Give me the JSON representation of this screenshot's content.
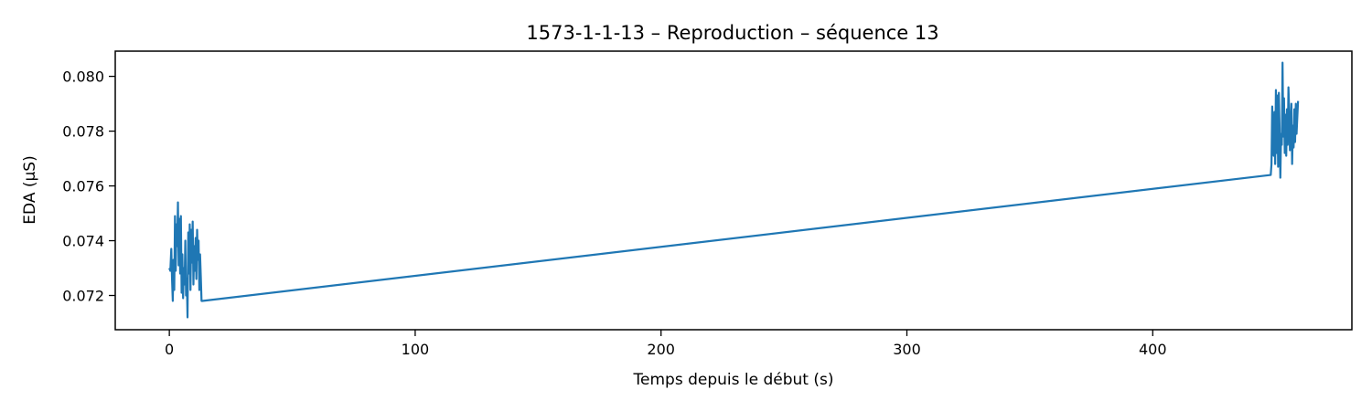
{
  "chart_data": {
    "type": "line",
    "title": "1573-1-1-13 – Reproduction – séquence 13",
    "xlabel": "Temps depuis le début (s)",
    "ylabel": "EDA (µS)",
    "xlim": [
      -22,
      481
    ],
    "ylim": [
      0.07075,
      0.08092
    ],
    "xticks": [
      {
        "value": 0,
        "label": "0"
      },
      {
        "value": 100,
        "label": "100"
      },
      {
        "value": 200,
        "label": "200"
      },
      {
        "value": 300,
        "label": "300"
      },
      {
        "value": 400,
        "label": "400"
      }
    ],
    "yticks": [
      {
        "value": 0.072,
        "label": "0.072"
      },
      {
        "value": 0.074,
        "label": "0.074"
      },
      {
        "value": 0.076,
        "label": "0.076"
      },
      {
        "value": 0.078,
        "label": "0.078"
      },
      {
        "value": 0.08,
        "label": "0.080"
      }
    ],
    "grid": false,
    "series": [
      {
        "color": "#1f77b4",
        "x": [
          0.0,
          0.4,
          0.8,
          1.1,
          1.4,
          1.7,
          2.0,
          2.3,
          2.6,
          2.9,
          3.2,
          3.5,
          3.8,
          4.1,
          4.4,
          4.7,
          5.0,
          5.3,
          5.6,
          5.9,
          6.2,
          6.5,
          6.8,
          7.1,
          7.4,
          7.7,
          8.0,
          8.3,
          8.6,
          8.9,
          9.2,
          9.5,
          9.8,
          10.1,
          10.4,
          10.7,
          11.0,
          11.3,
          11.6,
          11.9,
          12.2,
          12.5,
          12.8,
          13.1,
          13.4,
          448.0,
          448.3,
          448.6,
          448.9,
          449.2,
          449.5,
          449.8,
          450.1,
          450.4,
          450.7,
          451.0,
          451.3,
          451.6,
          451.9,
          452.2,
          452.5,
          452.8,
          453.1,
          453.4,
          453.7,
          454.0,
          454.3,
          454.6,
          454.9,
          455.2,
          455.5,
          455.8,
          456.1,
          456.4,
          456.7,
          457.0,
          457.3,
          457.6,
          457.9,
          458.2,
          458.5,
          458.8,
          459.1
        ],
        "y": [
          0.073,
          0.0729,
          0.0737,
          0.0726,
          0.0718,
          0.0733,
          0.0722,
          0.0749,
          0.0729,
          0.0746,
          0.0738,
          0.0754,
          0.0731,
          0.0748,
          0.0728,
          0.0749,
          0.0721,
          0.0735,
          0.0719,
          0.073,
          0.0724,
          0.074,
          0.072,
          0.0726,
          0.0712,
          0.0743,
          0.0728,
          0.0746,
          0.0722,
          0.0744,
          0.0732,
          0.0747,
          0.0724,
          0.0738,
          0.0729,
          0.0741,
          0.0726,
          0.0744,
          0.0733,
          0.074,
          0.0722,
          0.0735,
          0.0727,
          0.0718,
          0.0718,
          0.0764,
          0.0768,
          0.0789,
          0.0775,
          0.0771,
          0.0787,
          0.0768,
          0.0795,
          0.0772,
          0.0793,
          0.0767,
          0.0794,
          0.0781,
          0.0763,
          0.0779,
          0.0775,
          0.0805,
          0.0778,
          0.0792,
          0.0772,
          0.0786,
          0.0771,
          0.0788,
          0.0775,
          0.0796,
          0.0787,
          0.0773,
          0.078,
          0.079,
          0.0768,
          0.0782,
          0.0774,
          0.0788,
          0.0776,
          0.079,
          0.0779,
          0.0785,
          0.0791
        ]
      }
    ]
  }
}
